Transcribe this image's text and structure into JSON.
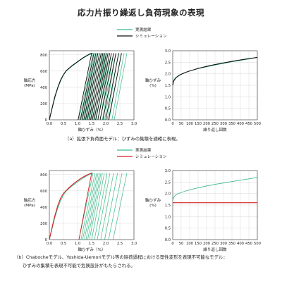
{
  "title": "応力片振り繰返し負荷現象の表現",
  "captions": {
    "a": "（a）拡張下負荷面モデル：ひずみの集積を適確に表現。",
    "b_line1": "（b）Chabocheモデル、Yoshida-Uemoriモデル等の除荷過程における塑性変形を表現不可能なモデル：",
    "b_line2": "ひずみの集積を表現不可能で危険設計がもたらされる。"
  },
  "colors": {
    "experiment": "#3dba8a",
    "simulation_a": "#111111",
    "simulation_b": "#d42020",
    "axis": "#333333",
    "grid": "#d0d0d0"
  },
  "chart_data": [
    {
      "id": "a-stress-strain",
      "type": "line",
      "xlabel": "軸ひずみ（%）",
      "ylabel": "軸応力\n(MPa)",
      "xlim": [
        0,
        3.0
      ],
      "ylim": [
        0,
        850
      ],
      "xticks": [
        "0.0",
        "0.5",
        "1.0",
        "1.5",
        "2.0",
        "2.5",
        "3.0"
      ],
      "yticks": [
        "0",
        "200",
        "400",
        "600",
        "800"
      ],
      "legend": [
        "実測結果",
        "シミュレーション"
      ],
      "legend_position": "top",
      "grid": true,
      "series": [
        {
          "name": "実測結果",
          "kind": "experiment",
          "loading_path": [
            [
              0,
              0
            ],
            [
              0.1,
              140
            ],
            [
              0.2,
              280
            ],
            [
              0.3,
              390
            ],
            [
              0.4,
              480
            ],
            [
              0.5,
              550
            ],
            [
              0.6,
              600
            ],
            [
              0.8,
              660
            ],
            [
              1.0,
              710
            ],
            [
              1.2,
              760
            ],
            [
              1.4,
              800
            ],
            [
              1.55,
              820
            ]
          ],
          "unload_loops": [
            [
              1.55,
              1.05
            ],
            [
              1.62,
              1.12
            ],
            [
              1.68,
              1.18
            ],
            [
              1.73,
              1.24
            ],
            [
              1.78,
              1.3
            ],
            [
              1.83,
              1.36
            ],
            [
              1.88,
              1.42
            ],
            [
              1.93,
              1.48
            ],
            [
              1.98,
              1.54
            ],
            [
              2.03,
              1.6
            ],
            [
              2.08,
              1.66
            ],
            [
              2.14,
              1.72
            ],
            [
              2.2,
              1.8
            ],
            [
              2.28,
              1.88
            ],
            [
              2.36,
              1.96
            ],
            [
              2.45,
              2.05
            ],
            [
              2.55,
              2.12
            ],
            [
              2.65,
              2.22
            ],
            [
              2.75,
              2.3
            ]
          ],
          "peak": 820
        },
        {
          "name": "シミュレーション",
          "kind": "simulation",
          "loading_path": [
            [
              0,
              0
            ],
            [
              0.1,
              150
            ],
            [
              0.2,
              290
            ],
            [
              0.3,
              400
            ],
            [
              0.4,
              490
            ],
            [
              0.5,
              555
            ],
            [
              0.6,
              605
            ],
            [
              0.8,
              665
            ],
            [
              1.0,
              715
            ],
            [
              1.2,
              765
            ],
            [
              1.4,
              805
            ],
            [
              1.5,
              820
            ]
          ],
          "unload_loops": [
            [
              1.5,
              1.02
            ],
            [
              1.58,
              1.1
            ],
            [
              1.65,
              1.16
            ],
            [
              1.72,
              1.22
            ],
            [
              1.78,
              1.28
            ],
            [
              1.84,
              1.34
            ],
            [
              1.9,
              1.4
            ],
            [
              1.96,
              1.46
            ],
            [
              2.02,
              1.52
            ],
            [
              2.08,
              1.58
            ],
            [
              2.14,
              1.64
            ],
            [
              2.2,
              1.72
            ],
            [
              2.28,
              1.8
            ],
            [
              2.36,
              1.9
            ],
            [
              2.46,
              2.0
            ],
            [
              2.56,
              2.1
            ]
          ],
          "peak": 820
        }
      ]
    },
    {
      "id": "a-strain-cycles",
      "type": "line",
      "xlabel": "繰り返し回数",
      "ylabel": "軸ひずみ\n(%)",
      "xlim": [
        0,
        500
      ],
      "ylim": [
        0,
        3.0
      ],
      "xticks": [
        "0",
        "50",
        "100",
        "150",
        "200",
        "250",
        "300",
        "350",
        "400",
        "450",
        "500"
      ],
      "yticks": [
        "0.0",
        "0.5",
        "1.0",
        "1.5",
        "2.0",
        "2.5",
        "3.0"
      ],
      "grid": true,
      "series": [
        {
          "name": "実測結果",
          "kind": "experiment",
          "points": [
            [
              0,
              1.55
            ],
            [
              5,
              1.7
            ],
            [
              10,
              1.77
            ],
            [
              20,
              1.85
            ],
            [
              40,
              1.95
            ],
            [
              60,
              2.02
            ],
            [
              80,
              2.07
            ],
            [
              100,
              2.12
            ],
            [
              150,
              2.22
            ],
            [
              200,
              2.3
            ],
            [
              250,
              2.38
            ],
            [
              300,
              2.45
            ],
            [
              350,
              2.52
            ],
            [
              400,
              2.58
            ],
            [
              450,
              2.64
            ],
            [
              500,
              2.72
            ]
          ]
        },
        {
          "name": "シミュレーション",
          "kind": "simulation",
          "points": [
            [
              0,
              1.5
            ],
            [
              5,
              1.66
            ],
            [
              10,
              1.74
            ],
            [
              20,
              1.83
            ],
            [
              40,
              1.94
            ],
            [
              60,
              2.01
            ],
            [
              80,
              2.07
            ],
            [
              100,
              2.12
            ],
            [
              150,
              2.23
            ],
            [
              200,
              2.32
            ],
            [
              250,
              2.4
            ],
            [
              300,
              2.47
            ],
            [
              350,
              2.54
            ],
            [
              400,
              2.6
            ],
            [
              450,
              2.66
            ],
            [
              500,
              2.71
            ]
          ]
        }
      ]
    },
    {
      "id": "b-stress-strain",
      "type": "line",
      "xlabel": "軸ひずみ（%）",
      "ylabel": "軸応力\n(MPa)",
      "xlim": [
        0,
        3.0
      ],
      "ylim": [
        0,
        850
      ],
      "xticks": [
        "0.0",
        "0.5",
        "1.0",
        "1.5",
        "2.0",
        "2.5",
        "3.0"
      ],
      "yticks": [
        "0",
        "200",
        "400",
        "600",
        "800"
      ],
      "legend": [
        "実測結果",
        "シミュレーション"
      ],
      "legend_position": "top",
      "grid": true,
      "series": [
        {
          "name": "実測結果",
          "kind": "experiment",
          "loading_path": [
            [
              0,
              0
            ],
            [
              0.1,
              140
            ],
            [
              0.2,
              280
            ],
            [
              0.3,
              390
            ],
            [
              0.4,
              480
            ],
            [
              0.5,
              550
            ],
            [
              0.6,
              600
            ],
            [
              0.8,
              660
            ],
            [
              1.0,
              710
            ],
            [
              1.2,
              760
            ],
            [
              1.4,
              800
            ],
            [
              1.55,
              820
            ]
          ],
          "unload_loops": [
            [
              1.55,
              1.05
            ],
            [
              1.62,
              1.12
            ],
            [
              1.68,
              1.18
            ],
            [
              1.73,
              1.24
            ],
            [
              1.78,
              1.3
            ],
            [
              1.83,
              1.36
            ],
            [
              1.88,
              1.42
            ],
            [
              1.95,
              1.5
            ],
            [
              2.05,
              1.6
            ],
            [
              2.15,
              1.7
            ],
            [
              2.28,
              1.82
            ],
            [
              2.42,
              1.96
            ],
            [
              2.58,
              2.1
            ],
            [
              2.75,
              2.26
            ]
          ],
          "peak": 820
        },
        {
          "name": "シミュレーション",
          "kind": "simulation",
          "loading_path": [
            [
              0,
              0
            ],
            [
              0.1,
              155
            ],
            [
              0.2,
              300
            ],
            [
              0.3,
              420
            ],
            [
              0.4,
              510
            ],
            [
              0.5,
              570
            ],
            [
              0.7,
              640
            ],
            [
              0.9,
              700
            ],
            [
              1.1,
              750
            ],
            [
              1.3,
              790
            ],
            [
              1.5,
              820
            ]
          ],
          "unload_loops": [
            [
              1.5,
              1.05
            ]
          ],
          "peak": 820
        }
      ]
    },
    {
      "id": "b-strain-cycles",
      "type": "line",
      "xlabel": "繰り返し回数",
      "ylabel": "軸ひずみ\n(%)",
      "xlim": [
        0,
        500
      ],
      "ylim": [
        0,
        3.0
      ],
      "xticks": [
        "0",
        "50",
        "100",
        "150",
        "200",
        "250",
        "300",
        "350",
        "400",
        "450",
        "500"
      ],
      "yticks": [
        "0.0",
        "0.5",
        "1.0",
        "1.5",
        "2.0",
        "2.5",
        "3.0"
      ],
      "grid": true,
      "series": [
        {
          "name": "実測結果",
          "kind": "experiment",
          "points": [
            [
              0,
              1.7
            ],
            [
              5,
              1.82
            ],
            [
              10,
              1.88
            ],
            [
              20,
              1.95
            ],
            [
              40,
              2.02
            ],
            [
              60,
              2.07
            ],
            [
              80,
              2.12
            ],
            [
              100,
              2.16
            ],
            [
              150,
              2.25
            ],
            [
              200,
              2.33
            ],
            [
              250,
              2.4
            ],
            [
              300,
              2.46
            ],
            [
              350,
              2.52
            ],
            [
              400,
              2.58
            ],
            [
              450,
              2.64
            ],
            [
              500,
              2.7
            ]
          ]
        },
        {
          "name": "シミュレーション",
          "kind": "simulation",
          "points": [
            [
              0,
              1.6
            ],
            [
              100,
              1.6
            ],
            [
              200,
              1.6
            ],
            [
              300,
              1.6
            ],
            [
              400,
              1.6
            ],
            [
              500,
              1.6
            ]
          ]
        }
      ]
    }
  ]
}
